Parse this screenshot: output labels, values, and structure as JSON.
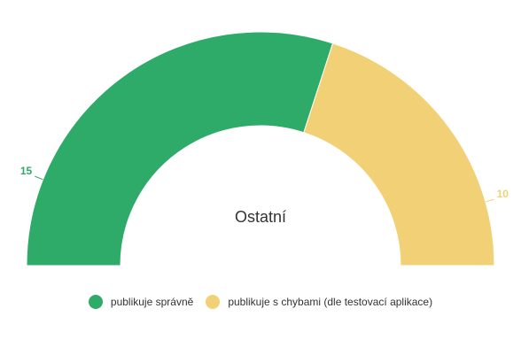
{
  "chart_data": {
    "type": "pie",
    "variant": "semi-donut",
    "center_label": "Ostatní",
    "slices": [
      {
        "name": "publikuje správně",
        "value": 15,
        "color": "#2eab69"
      },
      {
        "name": "publikuje s chybami (dle testovací aplikace)",
        "value": 10,
        "color": "#f2d176"
      }
    ],
    "legend_placement": "bottom"
  }
}
